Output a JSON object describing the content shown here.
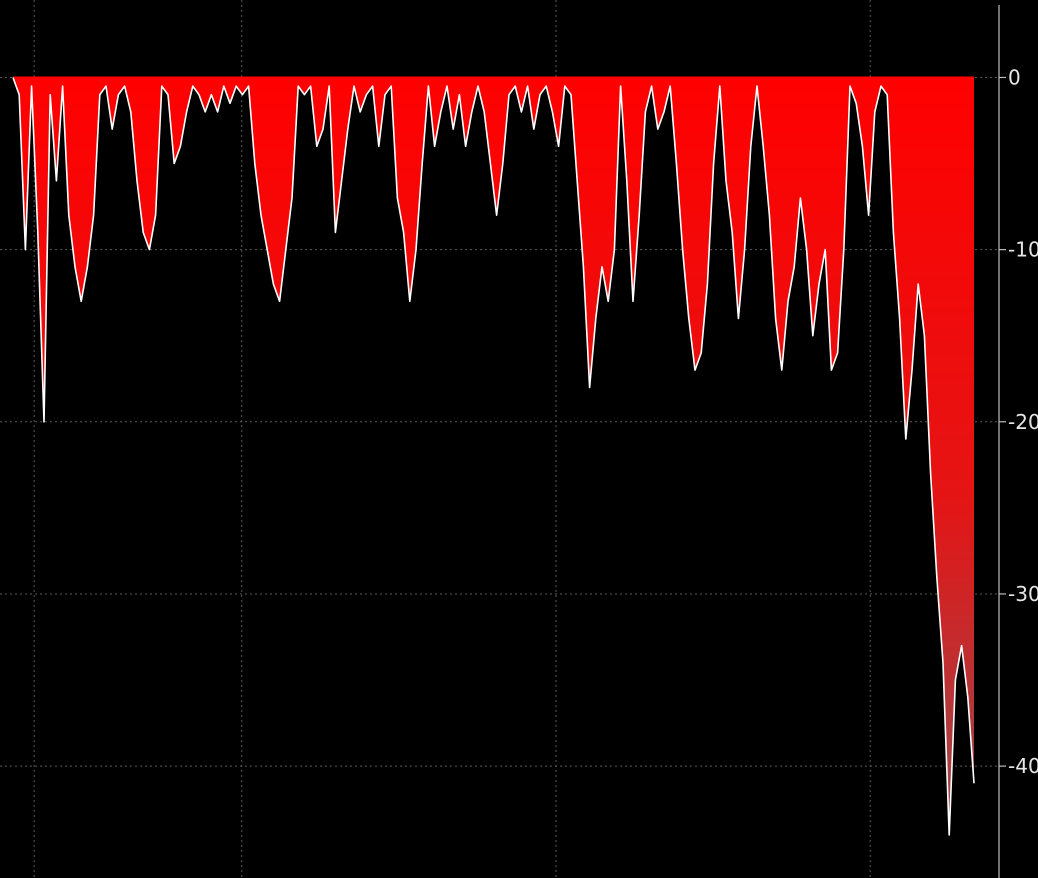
{
  "chart_data": {
    "type": "area",
    "title": "",
    "xlabel": "",
    "ylabel": "",
    "ylim": [
      -46.5,
      4.5
    ],
    "yticks": [
      0,
      -10,
      -20,
      -30,
      -40
    ],
    "ytick_labels": [
      "0",
      "-10",
      "-20",
      "-30",
      "-40"
    ],
    "grid": true,
    "legend": "none",
    "fill_color_top": "#ff0000",
    "fill_color_bottom": "#9a4a4e",
    "line_color": "#ffffff",
    "background": "#000000",
    "series": [
      {
        "values": [
          0,
          -1,
          -10,
          -0.5,
          -9,
          -20,
          -1,
          -6,
          -0.5,
          -8,
          -11,
          -13,
          -11,
          -8,
          -1,
          -0.5,
          -3,
          -1,
          -0.5,
          -2,
          -6,
          -9,
          -10,
          -8,
          -0.5,
          -1,
          -5,
          -4,
          -2,
          -0.5,
          -1,
          -2,
          -1,
          -2,
          -0.5,
          -1.5,
          -0.5,
          -1,
          -0.5,
          -5,
          -8,
          -10,
          -12,
          -13,
          -10,
          -7,
          -0.5,
          -1,
          -0.5,
          -4,
          -3,
          -0.5,
          -9,
          -6,
          -3,
          -0.5,
          -2,
          -1,
          -0.5,
          -4,
          -1,
          -0.5,
          -7,
          -9,
          -13,
          -10,
          -5,
          -0.5,
          -4,
          -2,
          -0.5,
          -3,
          -1,
          -4,
          -2,
          -0.5,
          -2,
          -5,
          -8,
          -5,
          -1,
          -0.5,
          -2,
          -0.5,
          -3,
          -1,
          -0.5,
          -2,
          -4,
          -0.5,
          -1,
          -6,
          -11,
          -18,
          -14,
          -11,
          -13,
          -10,
          -0.5,
          -6,
          -13,
          -8,
          -2,
          -0.5,
          -3,
          -2,
          -0.5,
          -5,
          -10,
          -14,
          -17,
          -16,
          -12,
          -5,
          -0.5,
          -6,
          -9,
          -14,
          -10,
          -4,
          -0.5,
          -4,
          -8,
          -14,
          -17,
          -13,
          -11,
          -7,
          -10,
          -15,
          -12,
          -10,
          -17,
          -16,
          -10,
          -0.5,
          -1.5,
          -4,
          -8,
          -2,
          -0.5,
          -1,
          -9,
          -14,
          -21,
          -17,
          -12,
          -15,
          -23,
          -29,
          -34,
          -44,
          -35,
          -33,
          -36,
          -41
        ]
      }
    ]
  }
}
